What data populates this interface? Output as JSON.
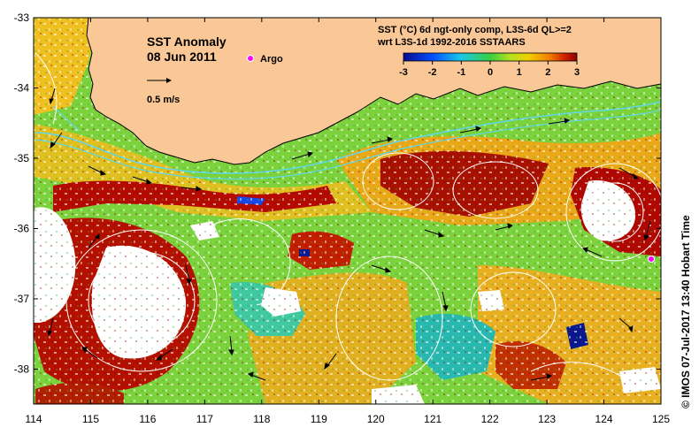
{
  "map": {
    "title": "SST Anomaly",
    "date": "08 Jun 2011",
    "argo_label": "Argo",
    "scale_label": "0.5 m/s",
    "legend_line1": "SST (°C) 6d ngt-only comp, L3S-6d QL>=2",
    "legend_line2": "wrt L3S-1d 1992-2016 SSTAARS",
    "credit": "© IMOS 07-Jul-2017 13:40 Hobart Time",
    "colorbar_ticks": [
      "-3",
      "-2",
      "-1",
      "0",
      "1",
      "2",
      "3"
    ],
    "x_ticks": [
      "114",
      "115",
      "116",
      "117",
      "118",
      "119",
      "120",
      "121",
      "122",
      "123",
      "124",
      "125"
    ],
    "y_ticks": [
      "-33",
      "-34",
      "-35",
      "-36",
      "-37",
      "-38"
    ],
    "colors": {
      "land": "#f9c896",
      "argo": "#ff00ff",
      "contour": "#ffffff",
      "jet": "#5fd7e8"
    }
  }
}
